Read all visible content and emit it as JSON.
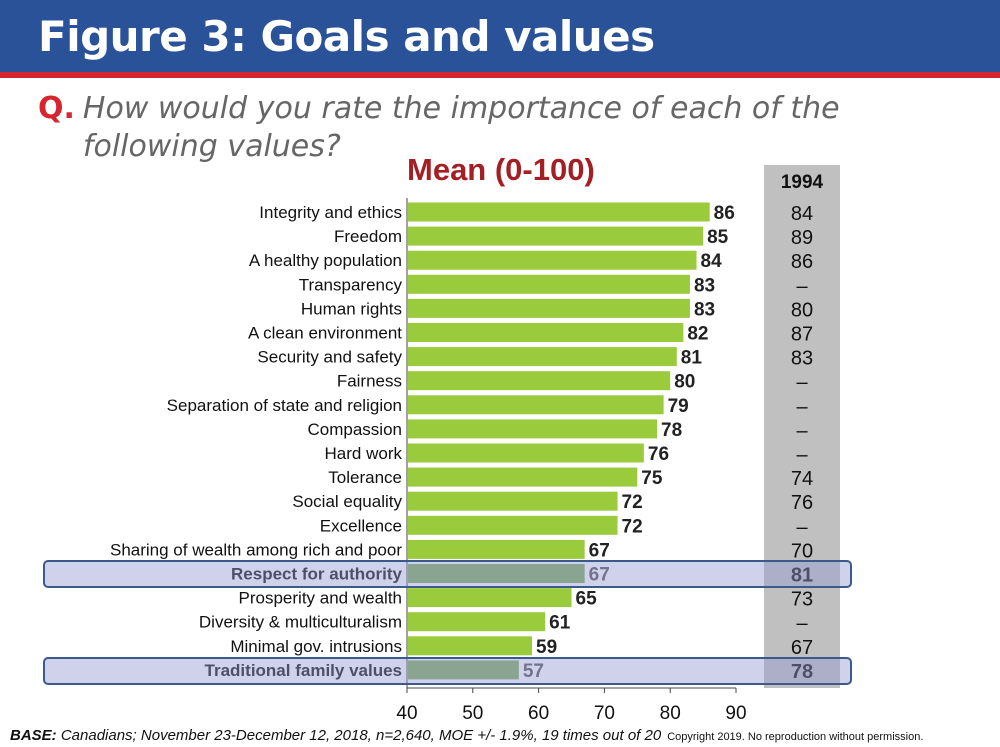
{
  "header": {
    "title": "Figure 3: Goals and values"
  },
  "question": {
    "mark": "Q.",
    "text": "How would you rate the importance of each of the following values?"
  },
  "footer": {
    "base_label": "BASE:",
    "base_text": " Canadians; November 23-December 12, 2018, n=2,640, MOE +/- 1.9%, 19 times out of 20",
    "copyright": "Copyright 2019. No reproduction without permission."
  },
  "colors": {
    "bar": "#9acb3c",
    "bar_highlight": "#7fae5c",
    "header": "#2a5298",
    "accent": "#d7252f"
  },
  "chart_data": {
    "type": "bar",
    "orientation": "horizontal",
    "title": "Mean (0-100)",
    "xlim": [
      40,
      90
    ],
    "xticks": [
      40,
      50,
      60,
      70,
      80,
      90
    ],
    "categories": [
      "Integrity and ethics",
      "Freedom",
      "A healthy population",
      "Transparency",
      "Human rights",
      "A clean environment",
      "Security and safety",
      "Fairness",
      "Separation of state and religion",
      "Compassion",
      "Hard work",
      "Tolerance",
      "Social equality",
      "Excellence",
      "Sharing of wealth among rich and poor",
      "Respect for authority",
      "Prosperity and wealth",
      "Diversity & multiculturalism",
      "Minimal gov. intrusions",
      "Traditional family values"
    ],
    "values": [
      86,
      85,
      84,
      83,
      83,
      82,
      81,
      80,
      79,
      78,
      76,
      75,
      72,
      72,
      67,
      67,
      65,
      61,
      59,
      57
    ],
    "highlighted": [
      "Respect for authority",
      "Traditional family values"
    ],
    "comparison_column": {
      "header": "1994",
      "values": [
        "84",
        "89",
        "86",
        "–",
        "80",
        "87",
        "83",
        "–",
        "–",
        "–",
        "–",
        "74",
        "76",
        "–",
        "70",
        "81",
        "73",
        "–",
        "67",
        "78"
      ]
    }
  }
}
